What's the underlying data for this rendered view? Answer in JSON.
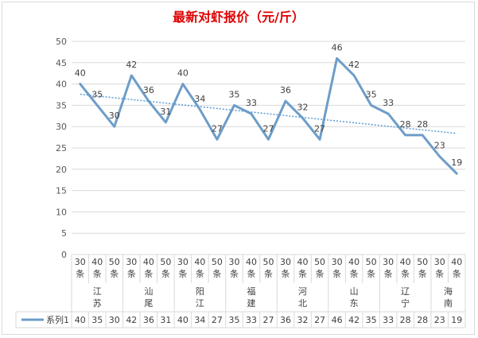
{
  "chart_data": {
    "type": "line",
    "title": "最新对虾报价（元/斤）",
    "ylim": [
      0,
      50
    ],
    "yticks": [
      0,
      5,
      10,
      15,
      20,
      25,
      30,
      35,
      40,
      45,
      50
    ],
    "grid": true,
    "legend": "bottom-left (in data table)",
    "categories": [
      {
        "size": "30",
        "unit": "条"
      },
      {
        "size": "40",
        "unit": "条"
      },
      {
        "size": "50",
        "unit": "条"
      },
      {
        "size": "30",
        "unit": "条"
      },
      {
        "size": "40",
        "unit": "条"
      },
      {
        "size": "50",
        "unit": "条"
      },
      {
        "size": "30",
        "unit": "条"
      },
      {
        "size": "40",
        "unit": "条"
      },
      {
        "size": "50",
        "unit": "条"
      },
      {
        "size": "30",
        "unit": "条"
      },
      {
        "size": "40",
        "unit": "条"
      },
      {
        "size": "50",
        "unit": "条"
      },
      {
        "size": "30",
        "unit": "条"
      },
      {
        "size": "40",
        "unit": "条"
      },
      {
        "size": "50",
        "unit": "条"
      },
      {
        "size": "30",
        "unit": "条"
      },
      {
        "size": "40",
        "unit": "条"
      },
      {
        "size": "50",
        "unit": "条"
      },
      {
        "size": "30",
        "unit": "条"
      },
      {
        "size": "40",
        "unit": "条"
      },
      {
        "size": "50",
        "unit": "条"
      },
      {
        "size": "30",
        "unit": "条"
      },
      {
        "size": "40",
        "unit": "条"
      }
    ],
    "groups": [
      {
        "label": "江苏",
        "start": 0,
        "count": 3
      },
      {
        "label": "汕尾",
        "start": 3,
        "count": 3
      },
      {
        "label": "阳江",
        "start": 6,
        "count": 3
      },
      {
        "label": "福建",
        "start": 9,
        "count": 3
      },
      {
        "label": "河北",
        "start": 12,
        "count": 3
      },
      {
        "label": "山东",
        "start": 15,
        "count": 3
      },
      {
        "label": "辽宁",
        "start": 18,
        "count": 3
      },
      {
        "label": "海南",
        "start": 21,
        "count": 2
      }
    ],
    "series": [
      {
        "name": "系列1",
        "color": "#6e9dc8",
        "values": [
          40,
          35,
          30,
          42,
          36,
          31,
          40,
          34,
          27,
          35,
          33,
          27,
          36,
          32,
          27,
          46,
          42,
          35,
          33,
          28,
          28,
          23,
          19
        ]
      }
    ],
    "trendline": {
      "type": "linear",
      "style": "dotted",
      "color": "#5b9bd5"
    }
  }
}
